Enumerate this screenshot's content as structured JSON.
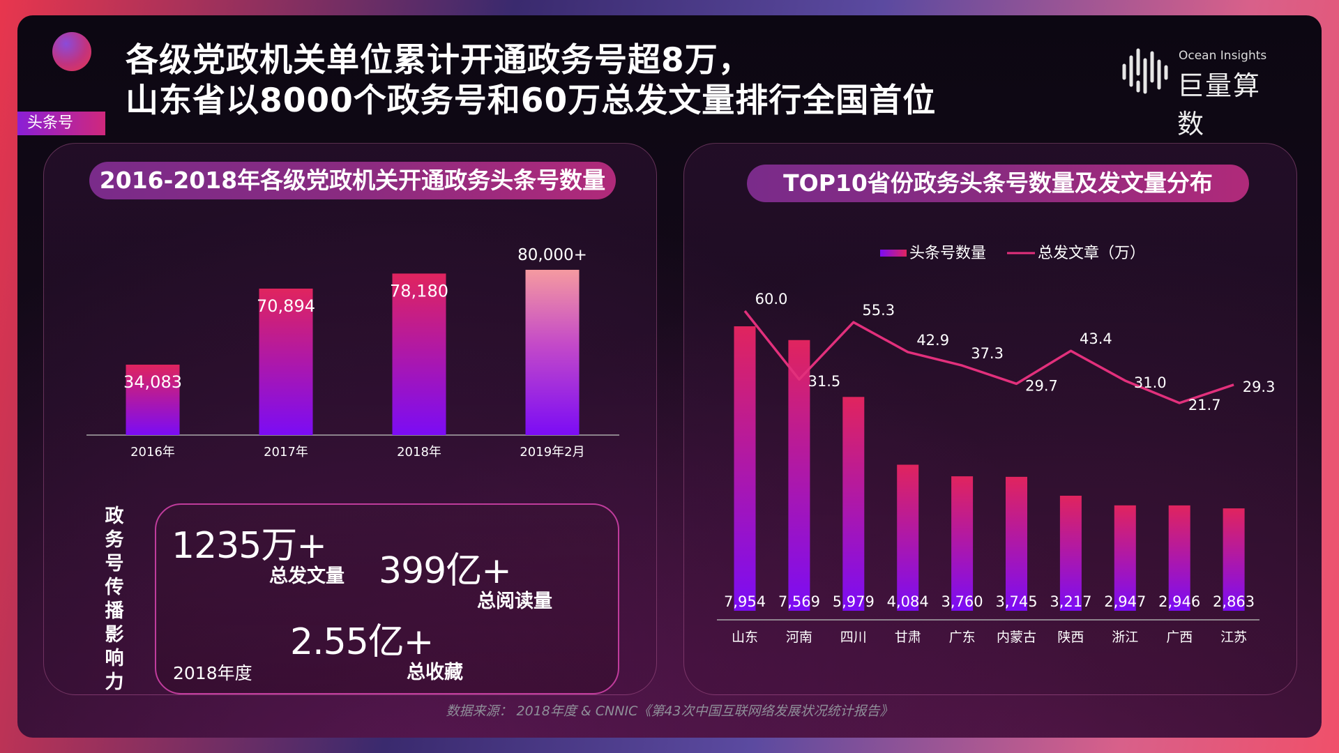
{
  "tag": "头条号",
  "headline": {
    "line1": "各级党政机关单位累计开通政务号超8万，",
    "line2": "山东省以8000个政务号和60万总发文量排行全国首位"
  },
  "logo": {
    "sub": "Ocean Insights",
    "main": "巨量算数",
    "icon": "audio-bars-icon"
  },
  "left_chart_title": "2016-2018年各级党政机关开通政务头条号数量",
  "right_chart_title": "TOP10省份政务头条号数量及发文量分布",
  "stats": {
    "vertical_title": "政务号传播影响力",
    "total_posts_value": "1235万+",
    "total_posts_label": "总发文量",
    "total_reads_value": "399亿+",
    "total_reads_label": "总阅读量",
    "total_favs_value": "2.55亿+",
    "total_favs_label": "总收藏",
    "year_label": "2018年度"
  },
  "source": "数据来源： 2018年度 & CNNIC《第43次中国互联网络发展状况统计报告》",
  "colors": {
    "bar_top": "#e0245e",
    "bar_bottom": "#7b0cf5",
    "line": "#e2307c",
    "accent_pill": "#8a2b80"
  },
  "chart_data": [
    {
      "type": "bar",
      "title": "2016-2018年各级党政机关开通政务头条号数量",
      "categories": [
        "2016年",
        "2017年",
        "2018年",
        "2019年2月"
      ],
      "values": [
        34083,
        70894,
        78180,
        80000
      ],
      "labels": [
        "34,083",
        "70,894",
        "78,180",
        "80,000+"
      ],
      "ylim": [
        0,
        80000
      ]
    },
    {
      "type": "bar",
      "title": "TOP10省份政务头条号数量及发文量分布",
      "categories": [
        "山东",
        "河南",
        "四川",
        "甘肃",
        "广东",
        "内蒙古",
        "陕西",
        "浙江",
        "广西",
        "江苏"
      ],
      "legend": [
        "头条号数量",
        "总发文章（万）"
      ],
      "legend_position": "top",
      "series": [
        {
          "name": "头条号数量",
          "type": "bar",
          "values": [
            7954,
            7569,
            5979,
            4084,
            3760,
            3745,
            3217,
            2947,
            2946,
            2863
          ],
          "labels": [
            "7,954",
            "7,569",
            "5,979",
            "4,084",
            "3,760",
            "3,745",
            "3,217",
            "2,947",
            "2,946",
            "2,863"
          ]
        },
        {
          "name": "总发文章（万）",
          "type": "line",
          "values": [
            60.0,
            31.5,
            55.3,
            42.9,
            37.3,
            29.7,
            43.4,
            31.0,
            21.7,
            29.3
          ],
          "labels": [
            "60.0",
            "31.5",
            "55.3",
            "42.9",
            "37.3",
            "29.7",
            "43.4",
            "31.0",
            "21.7",
            "29.3"
          ]
        }
      ]
    }
  ]
}
